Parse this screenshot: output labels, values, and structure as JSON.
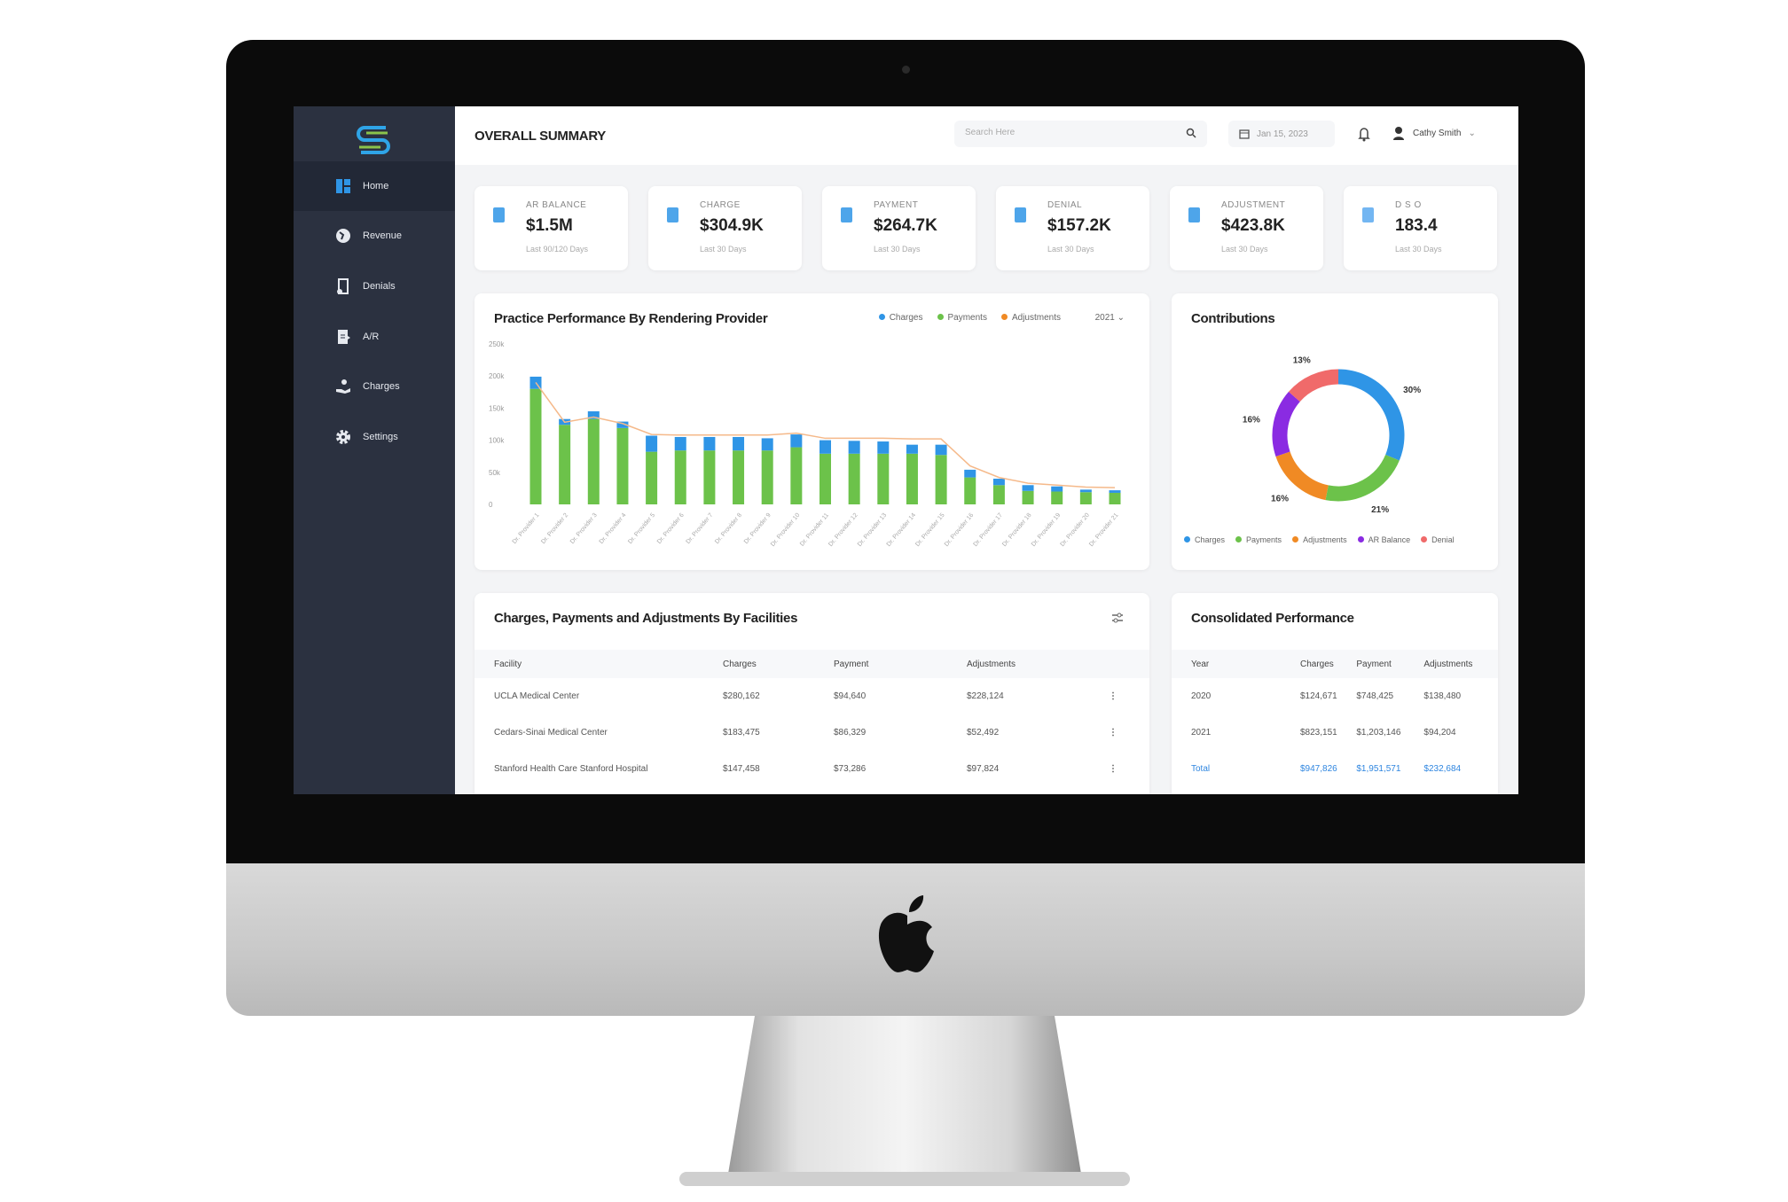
{
  "header": {
    "title": "OVERALL SUMMARY",
    "search_placeholder": "Search Here",
    "date": "Jan 15, 2023",
    "user": "Cathy Smith"
  },
  "sidebar": {
    "items": [
      {
        "label": "Home",
        "icon": "grid-icon",
        "active": true
      },
      {
        "label": "Revenue",
        "icon": "globe-icon"
      },
      {
        "label": "Denials",
        "icon": "document-icon"
      },
      {
        "label": "A/R",
        "icon": "file-icon"
      },
      {
        "label": "Charges",
        "icon": "hand-money-icon"
      },
      {
        "label": "Settings",
        "icon": "gear-icon"
      }
    ]
  },
  "kpis": [
    {
      "label": "AR BALANCE",
      "value": "$1.5M",
      "sub": "Last 90/120 Days"
    },
    {
      "label": "CHARGE",
      "value": "$304.9K",
      "sub": "Last 30 Days"
    },
    {
      "label": "PAYMENT",
      "value": "$264.7K",
      "sub": "Last 30 Days"
    },
    {
      "label": "DENIAL",
      "value": "$157.2K",
      "sub": "Last 30 Days"
    },
    {
      "label": "ADJUSTMENT",
      "value": "$423.8K",
      "sub": "Last 30 Days"
    },
    {
      "label": "D S O",
      "value": "183.4",
      "sub": "Last 30 Days"
    }
  ],
  "colors": {
    "charges": "#2f95e6",
    "payments": "#6cc24a",
    "adjustments": "#f08a24",
    "ar_balance": "#8a2be2",
    "denial": "#f06a6a",
    "sidebar": "#2b3140"
  },
  "chart_data": [
    {
      "type": "bar",
      "title": "Practice Performance By Rendering Provider",
      "stacked": true,
      "legend": [
        "Charges",
        "Payments",
        "Adjustments"
      ],
      "legend_position": "top-right",
      "filter": "2021",
      "yticks": [
        "0",
        "50k",
        "100k",
        "150k",
        "200k",
        "250k"
      ],
      "ylim": [
        0,
        250000
      ],
      "categories": [
        "Dr. Provider 1",
        "Dr. Provider 2",
        "Dr. Provider 3",
        "Dr. Provider 4",
        "Dr. Provider 5",
        "Dr. Provider 6",
        "Dr. Provider 7",
        "Dr. Provider 8",
        "Dr. Provider 9",
        "Dr. Provider 10",
        "Dr. Provider 11",
        "Dr. Provider 12",
        "Dr. Provider 13",
        "Dr. Provider 14",
        "Dr. Provider 15",
        "Dr. Provider 16",
        "Dr. Provider 17",
        "Dr. Provider 18",
        "Dr. Provider 19",
        "Dr. Provider 20",
        "Dr. Provider 21"
      ],
      "series": [
        {
          "name": "Payments",
          "values": [
            180000,
            124000,
            133000,
            119000,
            82000,
            84000,
            84000,
            84000,
            84000,
            89000,
            79000,
            79000,
            79000,
            79000,
            77000,
            42000,
            30000,
            21000,
            20000,
            19000,
            18000
          ]
        },
        {
          "name": "Charges",
          "values": [
            19000,
            9000,
            12000,
            10000,
            25000,
            21000,
            21000,
            21000,
            19000,
            20000,
            21000,
            20000,
            19000,
            14000,
            16000,
            12000,
            10000,
            9000,
            8000,
            4000,
            4000
          ]
        },
        {
          "name": "Adjustments",
          "type": "line",
          "values": [
            190000,
            128000,
            136000,
            126000,
            109000,
            108000,
            108000,
            108000,
            108000,
            111000,
            103000,
            103000,
            103000,
            102000,
            102000,
            60000,
            42000,
            33000,
            30000,
            27000,
            26000
          ]
        }
      ]
    },
    {
      "type": "pie",
      "donut": true,
      "title": "Contributions",
      "labels": [
        "Charges",
        "Payments",
        "Adjustments",
        "AR Balance",
        "Denial"
      ],
      "values": [
        30,
        21,
        16,
        16,
        13
      ],
      "value_labels": [
        "30%",
        "21%",
        "16%",
        "16%",
        "13%"
      ],
      "legend_position": "bottom"
    }
  ],
  "facilities": {
    "title": "Charges, Payments and Adjustments By Facilities",
    "columns": [
      "Facility",
      "Charges",
      "Payment",
      "Adjustments"
    ],
    "rows": [
      [
        "UCLA Medical Center",
        "$280,162",
        "$94,640",
        "$228,124"
      ],
      [
        "Cedars-Sinai Medical Center",
        "$183,475",
        "$86,329",
        "$52,492"
      ],
      [
        "Stanford Health Care Stanford Hospital",
        "$147,458",
        "$73,286",
        "$97,824"
      ]
    ]
  },
  "consolidated": {
    "title": "Consolidated Performance",
    "columns": [
      "Year",
      "Charges",
      "Payment",
      "Adjustments"
    ],
    "rows": [
      [
        "2020",
        "$124,671",
        "$748,425",
        "$138,480"
      ],
      [
        "2021",
        "$823,151",
        "$1,203,146",
        "$94,204"
      ]
    ],
    "total": [
      "Total",
      "$947,826",
      "$1,951,571",
      "$232,684"
    ]
  }
}
